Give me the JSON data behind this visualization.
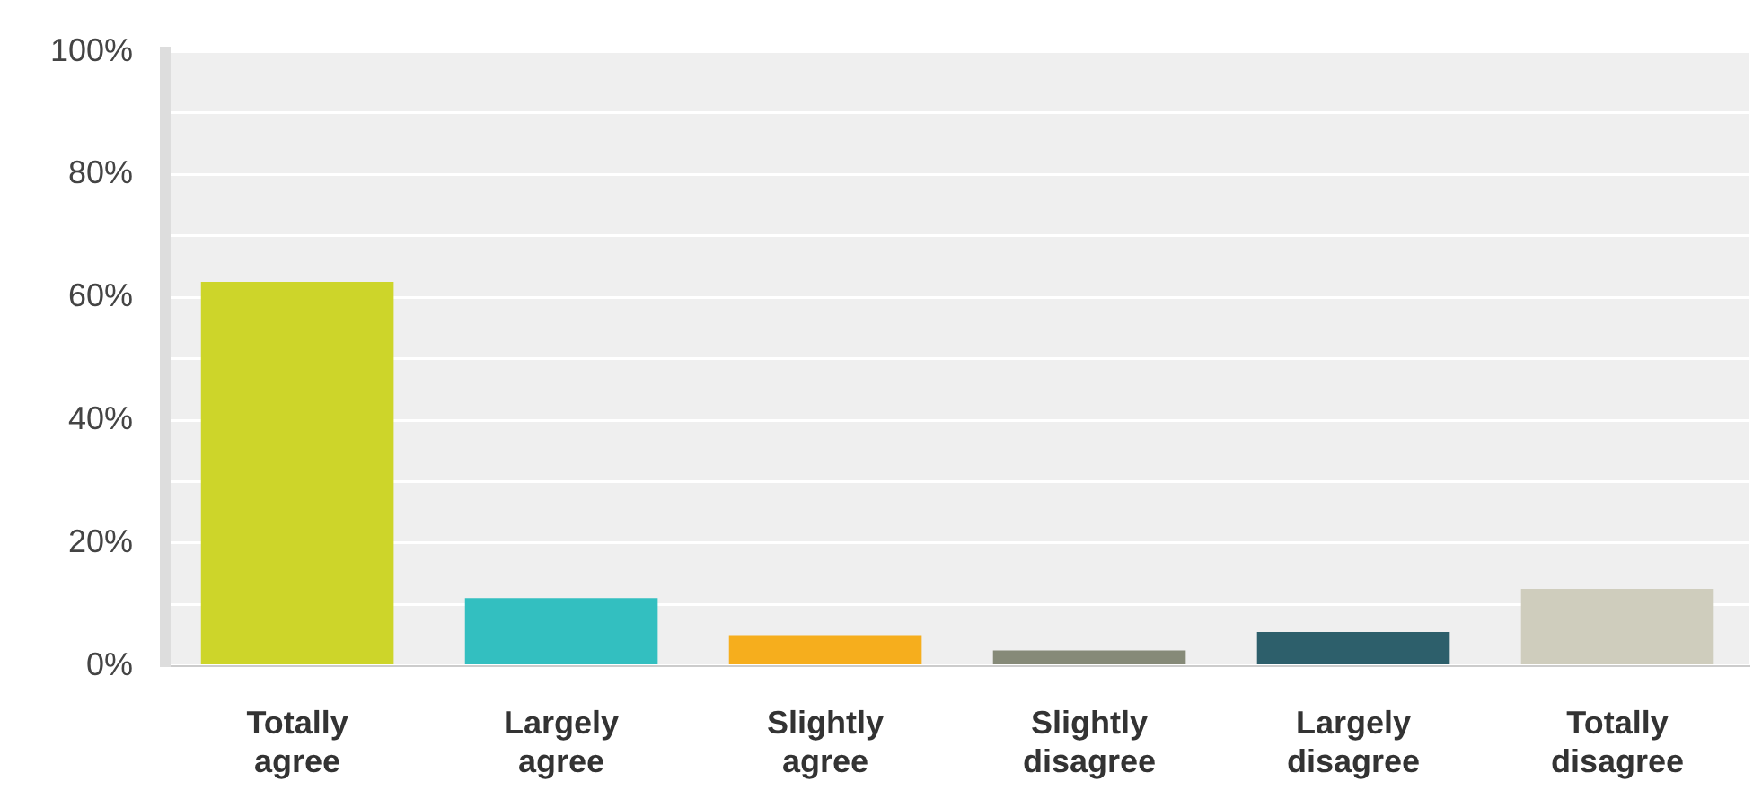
{
  "chart_data": {
    "type": "bar",
    "categories": [
      "Totally agree",
      "Largely agree",
      "Slightly agree",
      "Slightly disagree",
      "Largely disagree",
      "Totally disagree"
    ],
    "values": [
      62.5,
      11,
      5,
      2.5,
      5.5,
      12.5
    ],
    "colors": [
      "#cdd52a",
      "#33bfc0",
      "#f6ae1d",
      "#868a78",
      "#2d5f6b",
      "#cfcdbd"
    ],
    "ylim": [
      0,
      100
    ],
    "yticks": [
      {
        "value": 0,
        "label": "0%"
      },
      {
        "value": 10,
        "label": null
      },
      {
        "value": 20,
        "label": "20%"
      },
      {
        "value": 30,
        "label": null
      },
      {
        "value": 40,
        "label": "40%"
      },
      {
        "value": 50,
        "label": null
      },
      {
        "value": 60,
        "label": "60%"
      },
      {
        "value": 70,
        "label": null
      },
      {
        "value": 80,
        "label": "80%"
      },
      {
        "value": 90,
        "label": null
      },
      {
        "value": 100,
        "label": "100%"
      }
    ],
    "grid": "y"
  }
}
